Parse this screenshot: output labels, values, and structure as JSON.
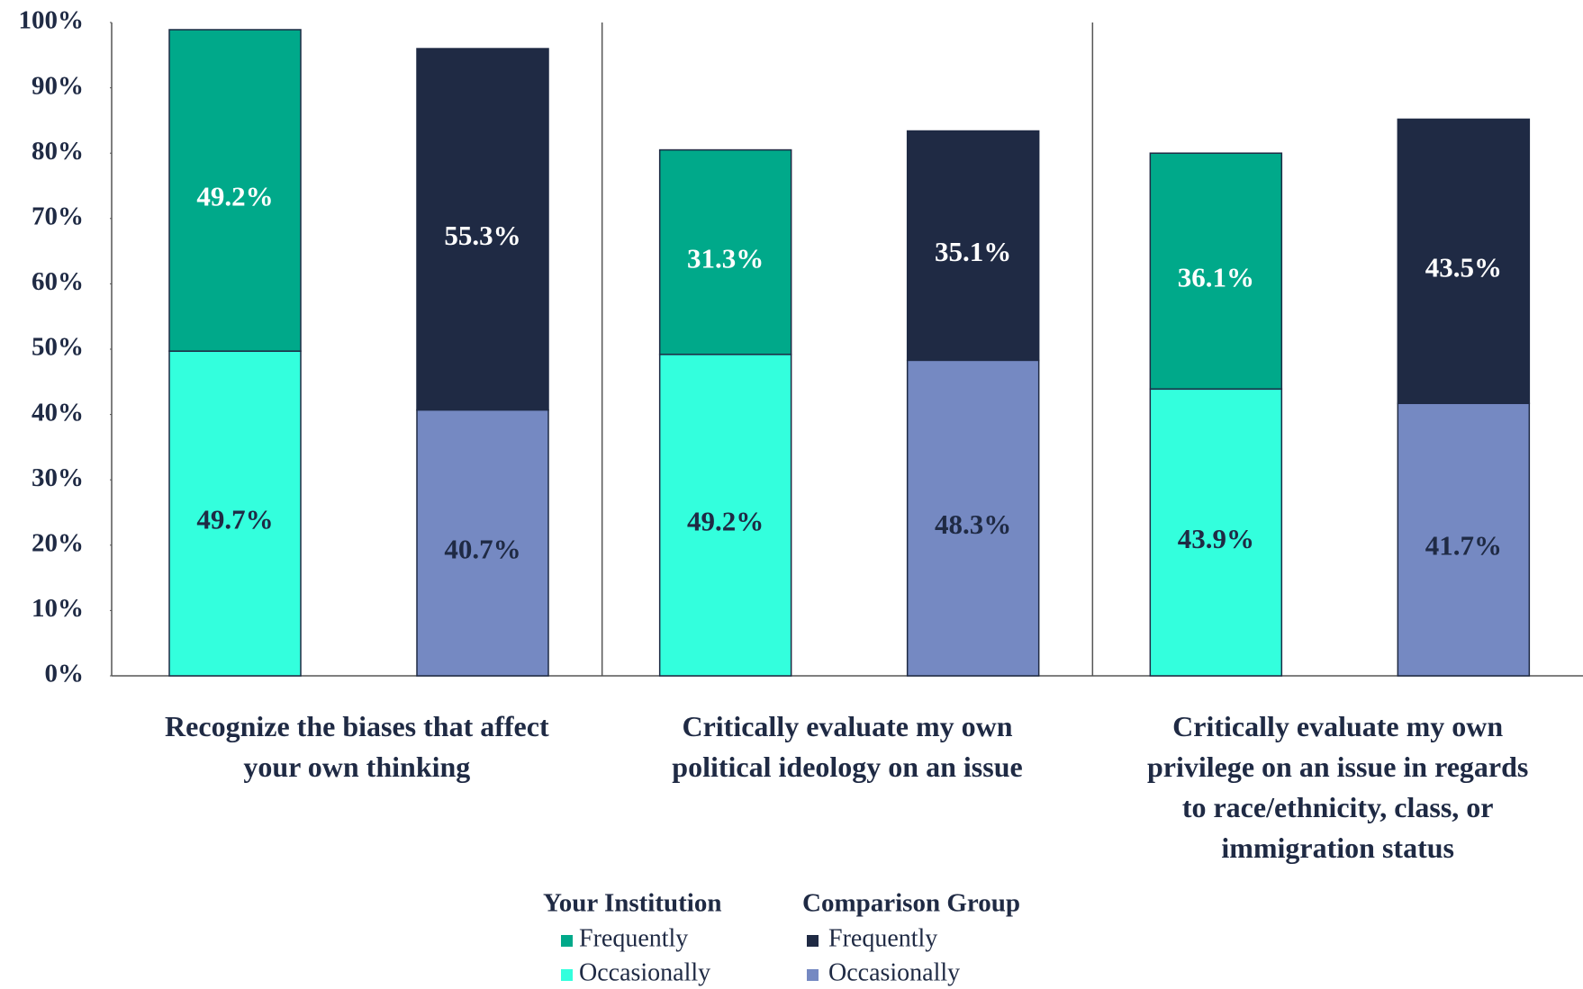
{
  "chart_data": {
    "type": "grouped_stacked_bar",
    "categories": [
      "Recognize the biases that affect your own thinking",
      "Critically evaluate my own political ideology on an issue",
      "Critically evaluate my own privilege on an issue in regards to race/ethnicity, class, or immigration status"
    ],
    "groups": [
      {
        "name": "Your Institution",
        "series": [
          {
            "name": "Frequently",
            "color": "#00a98a",
            "label_color": "#ffffff",
            "values": [
              49.2,
              31.3,
              36.1
            ],
            "value_labels": [
              "49.2%",
              "31.3%",
              "36.1%"
            ]
          },
          {
            "name": "Occasionally",
            "color": "#33ffdd",
            "label_color": "#1f2a44",
            "values": [
              49.7,
              49.2,
              43.9
            ],
            "value_labels": [
              "49.7%",
              "49.2%",
              "43.9%"
            ]
          }
        ]
      },
      {
        "name": "Comparison Group",
        "series": [
          {
            "name": "Frequently",
            "color": "#1f2a44",
            "label_color": "#ffffff",
            "values": [
              55.3,
              35.1,
              43.5
            ],
            "value_labels": [
              "55.3%",
              "35.1%",
              "43.5%"
            ]
          },
          {
            "name": "Occasionally",
            "color": "#7589c2",
            "label_color": "#1f2a44",
            "values": [
              40.7,
              48.3,
              41.7
            ],
            "value_labels": [
              "40.7%",
              "48.3%",
              "41.7%"
            ]
          }
        ]
      }
    ],
    "ylim": [
      0,
      100
    ],
    "yticks": [
      {
        "value": 0,
        "label": "0%"
      },
      {
        "value": 10,
        "label": "10%"
      },
      {
        "value": 20,
        "label": "20%"
      },
      {
        "value": 30,
        "label": "30%"
      },
      {
        "value": 40,
        "label": "40%"
      },
      {
        "value": 50,
        "label": "50%"
      },
      {
        "value": 60,
        "label": "60%"
      },
      {
        "value": 70,
        "label": "70%"
      },
      {
        "value": 80,
        "label": "80%"
      },
      {
        "value": 90,
        "label": "90%"
      },
      {
        "value": 100,
        "label": "100%"
      }
    ]
  }
}
